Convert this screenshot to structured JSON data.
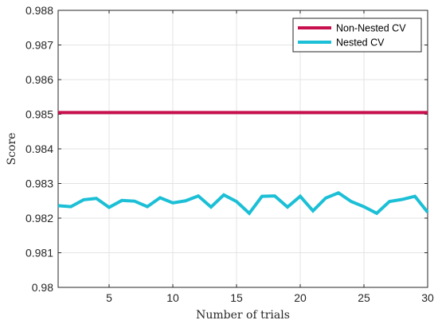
{
  "chart_data": {
    "type": "line",
    "title": "",
    "xlabel": "Number of trials",
    "ylabel": "Score",
    "xlim": [
      1,
      30
    ],
    "ylim": [
      0.98,
      0.988
    ],
    "xticks": [
      5,
      10,
      15,
      20,
      25,
      30
    ],
    "yticks": [
      0.98,
      0.981,
      0.982,
      0.983,
      0.984,
      0.985,
      0.986,
      0.987,
      0.988
    ],
    "ytick_labels": [
      "0.98",
      "0.981",
      "0.982",
      "0.983",
      "0.984",
      "0.985",
      "0.986",
      "0.987",
      "0.988"
    ],
    "grid": true,
    "legend_position": "top-right",
    "x": [
      1,
      2,
      3,
      4,
      5,
      6,
      7,
      8,
      9,
      10,
      11,
      12,
      13,
      14,
      15,
      16,
      17,
      18,
      19,
      20,
      21,
      22,
      23,
      24,
      25,
      26,
      27,
      28,
      29,
      30
    ],
    "series": [
      {
        "name": "Non-Nested CV",
        "color": "#c8104f",
        "values": [
          0.98505,
          0.98505,
          0.98505,
          0.98505,
          0.98505,
          0.98505,
          0.98505,
          0.98505,
          0.98505,
          0.98505,
          0.98505,
          0.98505,
          0.98505,
          0.98505,
          0.98505,
          0.98505,
          0.98505,
          0.98505,
          0.98505,
          0.98505,
          0.98505,
          0.98505,
          0.98505,
          0.98505,
          0.98505,
          0.98505,
          0.98505,
          0.98505,
          0.98505,
          0.98505
        ]
      },
      {
        "name": "Nested CV",
        "color": "#1bbfd6",
        "values": [
          0.98236,
          0.98233,
          0.98253,
          0.98257,
          0.98231,
          0.98251,
          0.98249,
          0.98233,
          0.98259,
          0.98244,
          0.9825,
          0.98264,
          0.98232,
          0.98267,
          0.98248,
          0.98214,
          0.98263,
          0.98264,
          0.98232,
          0.98263,
          0.98221,
          0.98258,
          0.98273,
          0.98248,
          0.98233,
          0.98214,
          0.98248,
          0.98254,
          0.98263,
          0.98217
        ]
      }
    ]
  }
}
